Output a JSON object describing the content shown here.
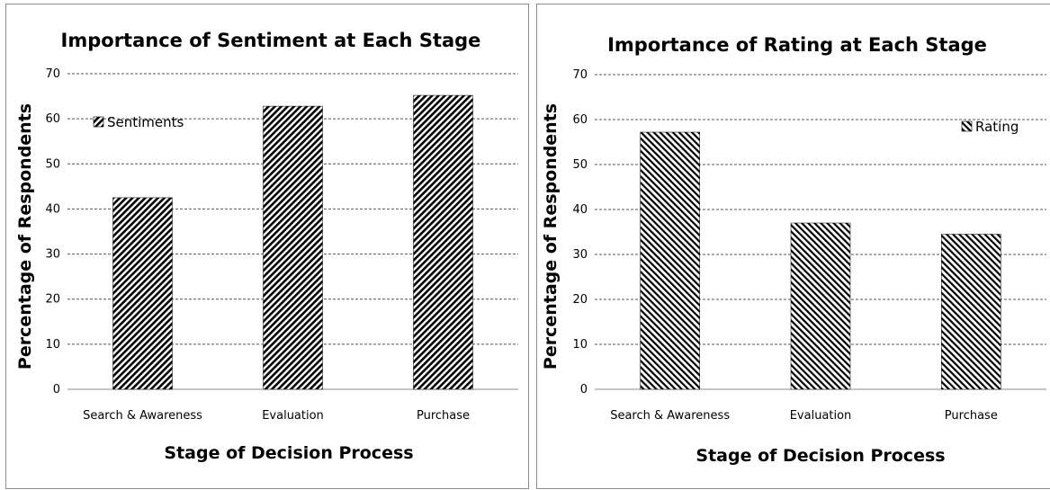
{
  "chart_data": [
    {
      "type": "bar",
      "title": "Importance of Sentiment at Each Stage",
      "xlabel": "Stage of Decision Process",
      "ylabel": "Percentage of Respondents",
      "categories": [
        "Search & Awareness",
        "Evaluation",
        "Purchase"
      ],
      "series": [
        {
          "name": "Sentiments",
          "values": [
            42.5,
            62.8,
            65.2
          ]
        }
      ],
      "ylim": [
        0,
        70
      ],
      "yticks": [
        "0",
        "10",
        "20",
        "30",
        "40",
        "50",
        "60",
        "70"
      ],
      "grid": true,
      "legend_position": "top-left",
      "pattern": "forward-diagonal",
      "bar_color": "#000000"
    },
    {
      "type": "bar",
      "title": "Importance of Rating at Each Stage",
      "xlabel": "Stage of Decision Process",
      "ylabel": "Percentage of Respondents",
      "categories": [
        "Search & Awareness",
        "Evaluation",
        "Purchase"
      ],
      "series": [
        {
          "name": "Rating",
          "values": [
            57.2,
            37.0,
            34.5
          ]
        }
      ],
      "ylim": [
        0,
        70
      ],
      "yticks": [
        "0",
        "10",
        "20",
        "30",
        "40",
        "50",
        "60",
        "70"
      ],
      "grid": true,
      "legend_position": "top-right",
      "pattern": "backward-diagonal",
      "bar_color": "#000000"
    }
  ]
}
